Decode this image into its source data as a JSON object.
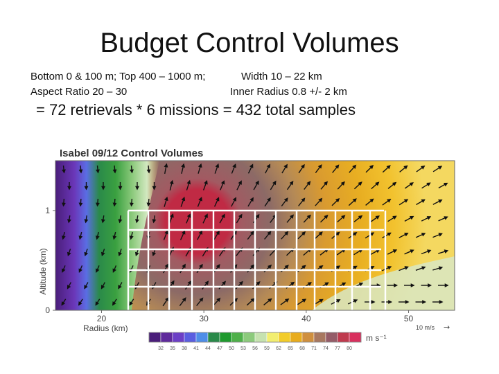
{
  "slide": {
    "title": "Budget Control Volumes",
    "line1_left": "Bottom 0 & 100 m;  Top 400 – 1000 m;",
    "line1_right": "Width 10 – 22 km",
    "line2_left": "Aspect Ratio 20 – 30",
    "line2_right": "Inner Radius 0.8 +/- 2 km",
    "summary": " = 72 retrievals * 6 missions = 432 total samples"
  },
  "figure": {
    "title": "Isabel 09/12 Control Volumes",
    "ylabel": "Altitude (km)",
    "xlabel": "Radius (km)",
    "x_ticks": [
      {
        "label": "20",
        "value": 20
      },
      {
        "label": "30",
        "value": 30
      },
      {
        "label": "40",
        "value": 40
      },
      {
        "label": "50",
        "value": 50
      }
    ],
    "y_ticks": [
      {
        "label": "0",
        "value": 0
      },
      {
        "label": "1",
        "value": 1
      }
    ],
    "x_range": [
      15.5,
      54.5
    ],
    "y_range": [
      0,
      1.5
    ],
    "vector_scale_label": "10 m/s",
    "vector_scale_arrow": "→",
    "colorbar_unit": "m s⁻¹",
    "colorbar_ticks": [
      "32",
      "35",
      "38",
      "41",
      "44",
      "47",
      "50",
      "53",
      "56",
      "59",
      "62",
      "65",
      "68",
      "71",
      "74",
      "77",
      "80"
    ],
    "colorbar_colors": [
      "#4a1e7a",
      "#5f2a9c",
      "#6c3fc6",
      "#5a5ee0",
      "#4f8ee8",
      "#2a8a4a",
      "#1f9a2e",
      "#4fb04a",
      "#8cca7c",
      "#c6e2b0",
      "#f2ee70",
      "#f2cc2a",
      "#e8ac1e",
      "#cf8f3e",
      "#a87860",
      "#945c68",
      "#bf3a4e",
      "#d8305e"
    ]
  }
}
